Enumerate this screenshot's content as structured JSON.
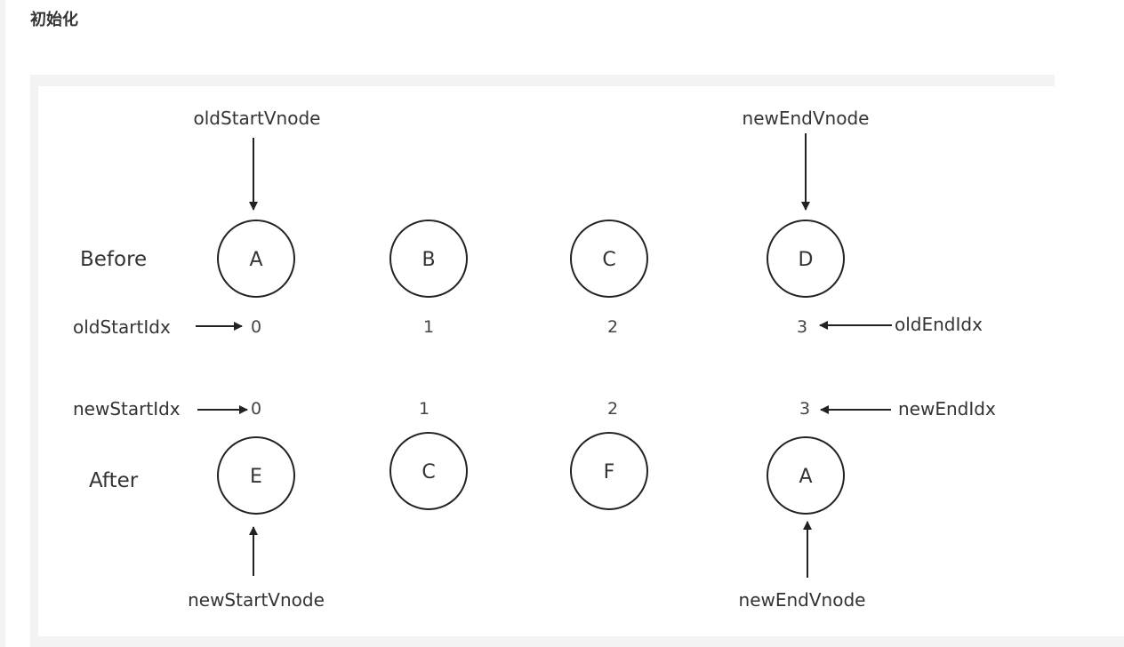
{
  "heading": "初始化",
  "diagram": {
    "row_labels": {
      "before": "Before",
      "after": "After"
    },
    "pointers": {
      "old_start_vnode": "oldStartVnode",
      "old_end_vnode": "newEndVnode",
      "new_start_vnode": "newStartVnode",
      "new_end_vnode": "newEndVnode"
    },
    "index_labels": {
      "old_start_idx": "oldStartIdx",
      "old_end_idx": "oldEndIdx",
      "new_start_idx": "newStartIdx",
      "new_end_idx": "newEndIdx"
    },
    "before_nodes": [
      "A",
      "B",
      "C",
      "D"
    ],
    "before_indices": [
      "0",
      "1",
      "2",
      "3"
    ],
    "after_indices": [
      "0",
      "1",
      "2",
      "3"
    ],
    "after_nodes": [
      "E",
      "C",
      "F",
      "A"
    ]
  }
}
